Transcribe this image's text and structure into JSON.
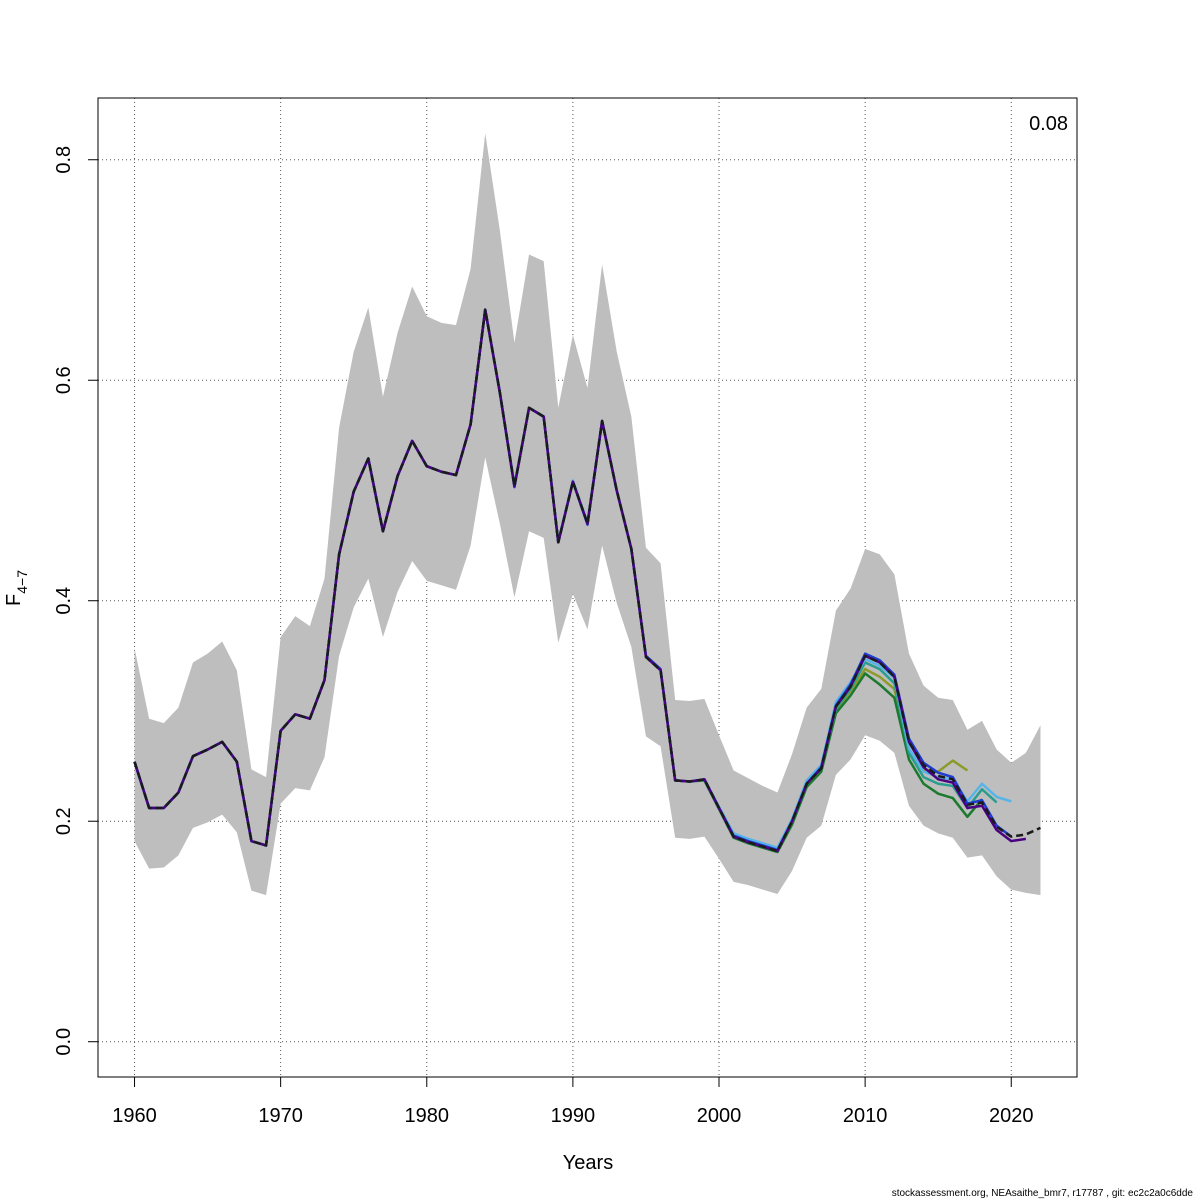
{
  "chart_data": {
    "type": "line",
    "xlabel": "Years",
    "ylabel_base": "F",
    "ylabel_sub": "4−7",
    "xlim": [
      1957.5,
      2024.5
    ],
    "ylim": [
      -0.032,
      0.856
    ],
    "xticks": [
      1960,
      1970,
      1980,
      1990,
      2000,
      2010,
      2020
    ],
    "yticks": [
      0.0,
      0.2,
      0.4,
      0.6,
      0.8
    ],
    "ytick_labels": [
      "0.0",
      "0.2",
      "0.4",
      "0.6",
      "0.8"
    ],
    "grid": true,
    "annotation": "0.08",
    "confidence_band": {
      "color": "#bebebe",
      "x": [
        1960,
        1961,
        1962,
        1963,
        1964,
        1965,
        1966,
        1967,
        1968,
        1969,
        1970,
        1971,
        1972,
        1973,
        1974,
        1975,
        1976,
        1977,
        1978,
        1979,
        1980,
        1981,
        1982,
        1983,
        1984,
        1985,
        1986,
        1987,
        1988,
        1989,
        1990,
        1991,
        1992,
        1993,
        1994,
        1995,
        1996,
        1997,
        1998,
        1999,
        2000,
        2001,
        2002,
        2003,
        2004,
        2005,
        2006,
        2007,
        2008,
        2009,
        2010,
        2011,
        2012,
        2013,
        2014,
        2015,
        2016,
        2017,
        2018,
        2019,
        2020,
        2021,
        2022
      ],
      "upper": [
        0.357,
        0.293,
        0.289,
        0.303,
        0.344,
        0.352,
        0.363,
        0.337,
        0.247,
        0.24,
        0.367,
        0.386,
        0.377,
        0.42,
        0.557,
        0.626,
        0.666,
        0.585,
        0.643,
        0.685,
        0.658,
        0.652,
        0.65,
        0.701,
        0.824,
        0.736,
        0.634,
        0.714,
        0.708,
        0.575,
        0.641,
        0.593,
        0.705,
        0.626,
        0.567,
        0.448,
        0.434,
        0.31,
        0.309,
        0.311,
        0.278,
        0.246,
        0.239,
        0.232,
        0.226,
        0.261,
        0.303,
        0.32,
        0.391,
        0.411,
        0.447,
        0.442,
        0.424,
        0.352,
        0.323,
        0.312,
        0.31,
        0.283,
        0.291,
        0.265,
        0.253,
        0.262,
        0.287
      ],
      "lower": [
        0.182,
        0.157,
        0.158,
        0.169,
        0.194,
        0.199,
        0.206,
        0.19,
        0.137,
        0.133,
        0.216,
        0.23,
        0.228,
        0.258,
        0.35,
        0.394,
        0.42,
        0.367,
        0.408,
        0.436,
        0.418,
        0.414,
        0.41,
        0.45,
        0.53,
        0.47,
        0.403,
        0.463,
        0.457,
        0.362,
        0.406,
        0.374,
        0.45,
        0.398,
        0.358,
        0.277,
        0.268,
        0.185,
        0.184,
        0.186,
        0.166,
        0.145,
        0.142,
        0.138,
        0.134,
        0.155,
        0.185,
        0.196,
        0.242,
        0.256,
        0.278,
        0.273,
        0.262,
        0.214,
        0.196,
        0.189,
        0.185,
        0.167,
        0.169,
        0.15,
        0.138,
        0.135,
        0.133
      ]
    },
    "series": [
      {
        "color": "#1a1a1a",
        "dashed": true,
        "x": [
          1960,
          1961,
          1962,
          1963,
          1964,
          1965,
          1966,
          1967,
          1968,
          1969,
          1970,
          1971,
          1972,
          1973,
          1974,
          1975,
          1976,
          1977,
          1978,
          1979,
          1980,
          1981,
          1982,
          1983,
          1984,
          1985,
          1986,
          1987,
          1988,
          1989,
          1990,
          1991,
          1992,
          1993,
          1994,
          1995,
          1996,
          1997,
          1998,
          1999,
          2000,
          2001,
          2002,
          2003,
          2004,
          2005,
          2006,
          2007,
          2008,
          2009,
          2010,
          2011,
          2012,
          2013,
          2014,
          2015,
          2016,
          2017,
          2018,
          2019,
          2020,
          2021,
          2022
        ],
        "y": [
          0.254,
          0.212,
          0.212,
          0.226,
          0.259,
          0.265,
          0.272,
          0.254,
          0.182,
          0.178,
          0.282,
          0.297,
          0.293,
          0.328,
          0.442,
          0.499,
          0.529,
          0.463,
          0.513,
          0.545,
          0.522,
          0.517,
          0.514,
          0.56,
          0.664,
          0.589,
          0.504,
          0.575,
          0.567,
          0.453,
          0.508,
          0.47,
          0.563,
          0.5,
          0.447,
          0.349,
          0.337,
          0.237,
          0.236,
          0.238,
          0.212,
          0.186,
          0.181,
          0.177,
          0.173,
          0.2,
          0.234,
          0.248,
          0.304,
          0.322,
          0.35,
          0.344,
          0.331,
          0.272,
          0.251,
          0.241,
          0.238,
          0.215,
          0.217,
          0.195,
          0.186,
          0.188,
          0.194
        ]
      },
      {
        "color": "#4b0082",
        "x": [
          1960,
          1961,
          1962,
          1963,
          1964,
          1965,
          1966,
          1967,
          1968,
          1969,
          1970,
          1971,
          1972,
          1973,
          1974,
          1975,
          1976,
          1977,
          1978,
          1979,
          1980,
          1981,
          1982,
          1983,
          1984,
          1985,
          1986,
          1987,
          1988,
          1989,
          1990,
          1991,
          1992,
          1993,
          1994,
          1995,
          1996,
          1997,
          1998,
          1999,
          2000,
          2001,
          2002,
          2003,
          2004,
          2005,
          2006,
          2007,
          2008,
          2009,
          2010,
          2011,
          2012,
          2013,
          2014,
          2015,
          2016,
          2017,
          2018,
          2019,
          2020,
          2021
        ],
        "y": [
          0.254,
          0.212,
          0.212,
          0.226,
          0.259,
          0.265,
          0.272,
          0.254,
          0.182,
          0.178,
          0.282,
          0.297,
          0.293,
          0.328,
          0.442,
          0.499,
          0.529,
          0.463,
          0.513,
          0.545,
          0.522,
          0.517,
          0.514,
          0.56,
          0.664,
          0.589,
          0.504,
          0.575,
          0.567,
          0.453,
          0.508,
          0.47,
          0.563,
          0.5,
          0.447,
          0.349,
          0.337,
          0.237,
          0.236,
          0.238,
          0.212,
          0.186,
          0.181,
          0.177,
          0.173,
          0.2,
          0.234,
          0.248,
          0.304,
          0.322,
          0.35,
          0.344,
          0.331,
          0.272,
          0.249,
          0.238,
          0.235,
          0.212,
          0.214,
          0.192,
          0.182,
          0.184
        ]
      },
      {
        "color": "#1e3ccf",
        "x": [
          1960,
          1961,
          1962,
          1963,
          1964,
          1965,
          1966,
          1967,
          1968,
          1969,
          1970,
          1971,
          1972,
          1973,
          1974,
          1975,
          1976,
          1977,
          1978,
          1979,
          1980,
          1981,
          1982,
          1983,
          1984,
          1985,
          1986,
          1987,
          1988,
          1989,
          1990,
          1991,
          1992,
          1993,
          1994,
          1995,
          1996,
          1997,
          1998,
          1999,
          2000,
          2001,
          2002,
          2003,
          2004,
          2005,
          2006,
          2007,
          2008,
          2009,
          2010,
          2011,
          2012,
          2013,
          2014,
          2015,
          2016,
          2017,
          2018,
          2019,
          2020
        ],
        "y": [
          0.254,
          0.212,
          0.212,
          0.226,
          0.259,
          0.265,
          0.272,
          0.254,
          0.182,
          0.178,
          0.282,
          0.297,
          0.293,
          0.328,
          0.442,
          0.499,
          0.529,
          0.463,
          0.513,
          0.545,
          0.522,
          0.517,
          0.514,
          0.56,
          0.664,
          0.589,
          0.503,
          0.575,
          0.567,
          0.453,
          0.508,
          0.469,
          0.563,
          0.5,
          0.447,
          0.35,
          0.338,
          0.237,
          0.236,
          0.238,
          0.212,
          0.187,
          0.182,
          0.178,
          0.174,
          0.2,
          0.234,
          0.249,
          0.305,
          0.324,
          0.352,
          0.346,
          0.333,
          0.275,
          0.253,
          0.244,
          0.24,
          0.216,
          0.219,
          0.196,
          0.186
        ]
      },
      {
        "color": "#56b4e9",
        "x": [
          1960,
          1961,
          1962,
          1963,
          1964,
          1965,
          1966,
          1967,
          1968,
          1969,
          1970,
          1971,
          1972,
          1973,
          1974,
          1975,
          1976,
          1977,
          1978,
          1979,
          1980,
          1981,
          1982,
          1983,
          1984,
          1985,
          1986,
          1987,
          1988,
          1989,
          1990,
          1991,
          1992,
          1993,
          1994,
          1995,
          1996,
          1997,
          1998,
          1999,
          2000,
          2001,
          2002,
          2003,
          2004,
          2005,
          2006,
          2007,
          2008,
          2009,
          2010,
          2011,
          2012,
          2013,
          2014,
          2015,
          2016,
          2017,
          2018,
          2019,
          2020
        ],
        "y": [
          0.254,
          0.212,
          0.212,
          0.226,
          0.259,
          0.265,
          0.272,
          0.254,
          0.182,
          0.178,
          0.282,
          0.297,
          0.293,
          0.328,
          0.442,
          0.499,
          0.529,
          0.463,
          0.513,
          0.545,
          0.522,
          0.517,
          0.514,
          0.56,
          0.664,
          0.589,
          0.505,
          0.575,
          0.567,
          0.454,
          0.509,
          0.471,
          0.563,
          0.5,
          0.447,
          0.349,
          0.337,
          0.237,
          0.236,
          0.238,
          0.213,
          0.189,
          0.184,
          0.18,
          0.176,
          0.202,
          0.237,
          0.251,
          0.308,
          0.326,
          0.347,
          0.341,
          0.33,
          0.266,
          0.245,
          0.24,
          0.238,
          0.218,
          0.234,
          0.222,
          0.218
        ]
      },
      {
        "color": "#2a9d8f",
        "x": [
          1960,
          1961,
          1962,
          1963,
          1964,
          1965,
          1966,
          1967,
          1968,
          1969,
          1970,
          1971,
          1972,
          1973,
          1974,
          1975,
          1976,
          1977,
          1978,
          1979,
          1980,
          1981,
          1982,
          1983,
          1984,
          1985,
          1986,
          1987,
          1988,
          1989,
          1990,
          1991,
          1992,
          1993,
          1994,
          1995,
          1996,
          1997,
          1998,
          1999,
          2000,
          2001,
          2002,
          2003,
          2004,
          2005,
          2006,
          2007,
          2008,
          2009,
          2010,
          2011,
          2012,
          2013,
          2014,
          2015,
          2016,
          2017,
          2018,
          2019
        ],
        "y": [
          0.254,
          0.212,
          0.212,
          0.226,
          0.259,
          0.265,
          0.272,
          0.254,
          0.182,
          0.178,
          0.282,
          0.297,
          0.293,
          0.328,
          0.442,
          0.499,
          0.529,
          0.463,
          0.513,
          0.545,
          0.522,
          0.517,
          0.514,
          0.56,
          0.664,
          0.589,
          0.504,
          0.575,
          0.567,
          0.453,
          0.508,
          0.47,
          0.563,
          0.5,
          0.447,
          0.349,
          0.337,
          0.237,
          0.236,
          0.238,
          0.212,
          0.187,
          0.182,
          0.178,
          0.174,
          0.2,
          0.234,
          0.248,
          0.302,
          0.32,
          0.344,
          0.338,
          0.325,
          0.262,
          0.24,
          0.234,
          0.232,
          0.212,
          0.229,
          0.217
        ]
      },
      {
        "color": "#1b7a2e",
        "x": [
          1960,
          1961,
          1962,
          1963,
          1964,
          1965,
          1966,
          1967,
          1968,
          1969,
          1970,
          1971,
          1972,
          1973,
          1974,
          1975,
          1976,
          1977,
          1978,
          1979,
          1980,
          1981,
          1982,
          1983,
          1984,
          1985,
          1986,
          1987,
          1988,
          1989,
          1990,
          1991,
          1992,
          1993,
          1994,
          1995,
          1996,
          1997,
          1998,
          1999,
          2000,
          2001,
          2002,
          2003,
          2004,
          2005,
          2006,
          2007,
          2008,
          2009,
          2010,
          2011,
          2012,
          2013,
          2014,
          2015,
          2016,
          2017,
          2018
        ],
        "y": [
          0.254,
          0.212,
          0.212,
          0.226,
          0.259,
          0.265,
          0.272,
          0.254,
          0.182,
          0.178,
          0.282,
          0.297,
          0.293,
          0.328,
          0.442,
          0.499,
          0.529,
          0.463,
          0.513,
          0.545,
          0.522,
          0.517,
          0.514,
          0.56,
          0.664,
          0.589,
          0.504,
          0.575,
          0.567,
          0.453,
          0.508,
          0.47,
          0.563,
          0.5,
          0.447,
          0.349,
          0.337,
          0.237,
          0.236,
          0.237,
          0.211,
          0.185,
          0.18,
          0.176,
          0.172,
          0.197,
          0.231,
          0.245,
          0.298,
          0.314,
          0.334,
          0.324,
          0.312,
          0.256,
          0.234,
          0.225,
          0.221,
          0.204,
          0.22
        ]
      },
      {
        "color": "#8c9a2a",
        "x": [
          1960,
          1961,
          1962,
          1963,
          1964,
          1965,
          1966,
          1967,
          1968,
          1969,
          1970,
          1971,
          1972,
          1973,
          1974,
          1975,
          1976,
          1977,
          1978,
          1979,
          1980,
          1981,
          1982,
          1983,
          1984,
          1985,
          1986,
          1987,
          1988,
          1989,
          1990,
          1991,
          1992,
          1993,
          1994,
          1995,
          1996,
          1997,
          1998,
          1999,
          2000,
          2001,
          2002,
          2003,
          2004,
          2005,
          2006,
          2007,
          2008,
          2009,
          2010,
          2011,
          2012,
          2013,
          2014,
          2015,
          2016,
          2017
        ],
        "y": [
          0.254,
          0.212,
          0.212,
          0.226,
          0.259,
          0.265,
          0.272,
          0.254,
          0.182,
          0.178,
          0.282,
          0.297,
          0.293,
          0.328,
          0.442,
          0.499,
          0.529,
          0.463,
          0.513,
          0.545,
          0.522,
          0.517,
          0.514,
          0.56,
          0.664,
          0.589,
          0.504,
          0.575,
          0.567,
          0.453,
          0.508,
          0.47,
          0.563,
          0.5,
          0.447,
          0.349,
          0.337,
          0.237,
          0.236,
          0.238,
          0.212,
          0.186,
          0.181,
          0.177,
          0.173,
          0.199,
          0.233,
          0.247,
          0.301,
          0.318,
          0.338,
          0.331,
          0.32,
          0.262,
          0.247,
          0.245,
          0.255,
          0.246
        ]
      }
    ]
  },
  "footer": {
    "text": "stockassessment.org, NEAsaithe_bmr7, r17787 , git: ec2c2a0c6dde"
  }
}
